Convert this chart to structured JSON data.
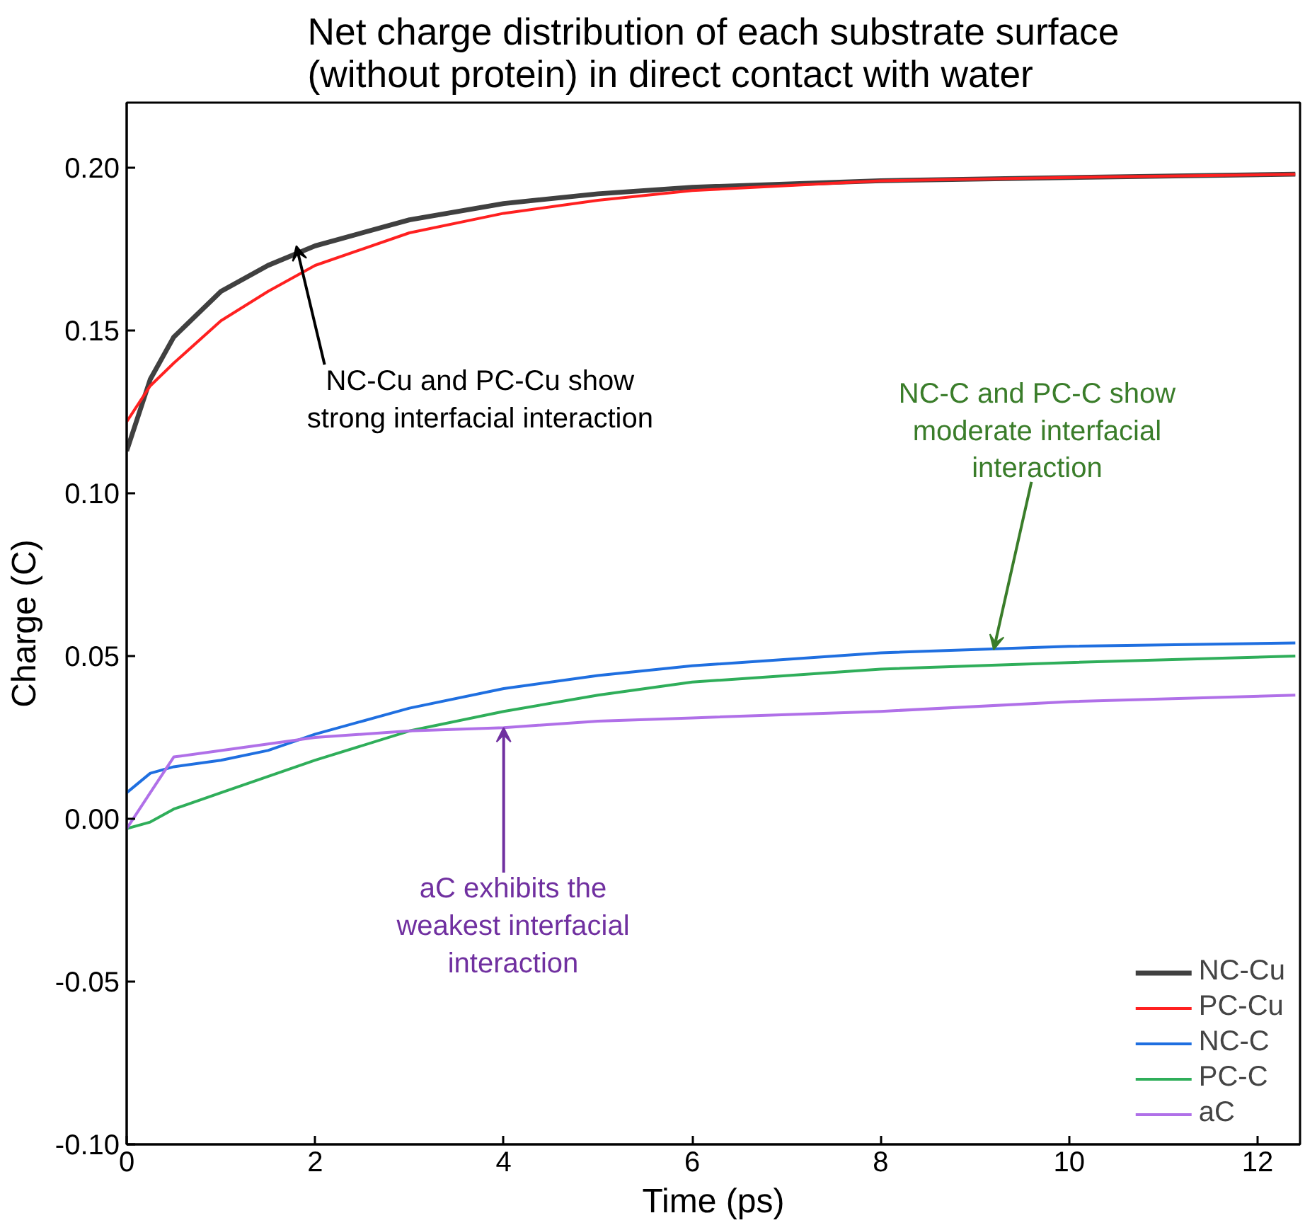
{
  "chart_data": {
    "type": "line",
    "title": "Net charge distribution of each substrate surface\n(without protein) in direct contact with water",
    "xlabel": "Time (ps)",
    "ylabel": "Charge (C)",
    "x": [
      0,
      0.25,
      0.5,
      1,
      1.5,
      2,
      3,
      4,
      5,
      6,
      8,
      10,
      12.4
    ],
    "series": [
      {
        "name": "NC-Cu",
        "color": "#404040",
        "values": [
          0.113,
          0.135,
          0.148,
          0.162,
          0.17,
          0.176,
          0.184,
          0.189,
          0.192,
          0.194,
          0.196,
          0.197,
          0.198
        ]
      },
      {
        "name": "PC-Cu",
        "color": "#ff2020",
        "values": [
          0.122,
          0.133,
          0.14,
          0.153,
          0.162,
          0.17,
          0.18,
          0.186,
          0.19,
          0.193,
          0.196,
          0.197,
          0.198
        ]
      },
      {
        "name": "NC-C",
        "color": "#1f6fe0",
        "values": [
          0.008,
          0.014,
          0.016,
          0.018,
          0.021,
          0.026,
          0.034,
          0.04,
          0.044,
          0.047,
          0.051,
          0.053,
          0.054
        ]
      },
      {
        "name": "PC-C",
        "color": "#2fae5a",
        "values": [
          -0.003,
          -0.001,
          0.003,
          0.008,
          0.013,
          0.018,
          0.027,
          0.033,
          0.038,
          0.042,
          0.046,
          0.048,
          0.05
        ]
      },
      {
        "name": "aC",
        "color": "#b070e8",
        "values": [
          -0.003,
          0.008,
          0.019,
          0.021,
          0.023,
          0.025,
          0.027,
          0.028,
          0.03,
          0.031,
          0.033,
          0.036,
          0.038
        ]
      }
    ],
    "xlim": [
      0,
      12.45
    ],
    "ylim": [
      -0.1,
      0.22
    ],
    "xticks": [
      0,
      2,
      4,
      6,
      8,
      10,
      12
    ],
    "yticks": [
      {
        "value": -0.1,
        "label": "-0.10"
      },
      {
        "value": -0.05,
        "label": "-0.05"
      },
      {
        "value": 0,
        "label": "0.00"
      },
      {
        "value": 0.05,
        "label": "0.05"
      },
      {
        "value": 0.1,
        "label": "0.10"
      },
      {
        "value": 0.15,
        "label": "0.15"
      },
      {
        "value": 0.2,
        "label": "0.20"
      }
    ],
    "annotations": [
      {
        "text": "NC-Cu and PC-Cu show\nstrong interfacial interaction",
        "x": 1.8,
        "y": 0.176
      },
      {
        "text": "NC-C and PC-C show\nmoderate interfacial\ninteraction",
        "x": 9.2,
        "y": 0.052
      },
      {
        "text": "aC exhibits the\nweakest interfacial\ninteraction",
        "x": 4.0,
        "y": 0.028
      }
    ],
    "legend": "bottom right",
    "grid": false,
    "line_style": "solid"
  }
}
